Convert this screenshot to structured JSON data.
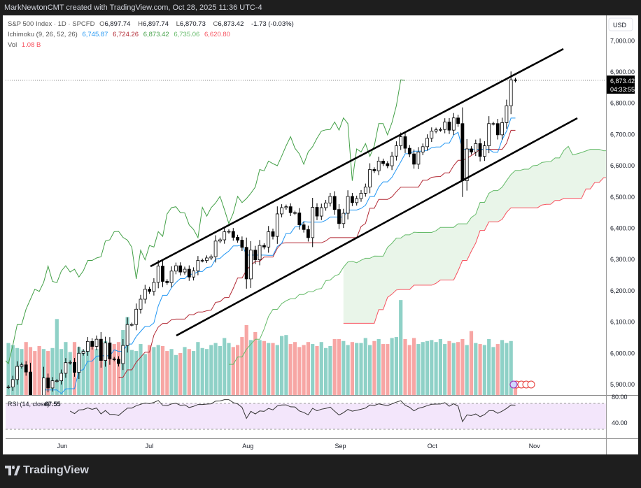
{
  "header": {
    "attribution": "MarkNewtonCMT created with TradingView.com, Oct 28, 2025 11:36 UTC-4"
  },
  "legend": {
    "symbol": "S&P 500 Index · 1D · SPCFD",
    "open_label": "O",
    "open": "6,897.74",
    "high_label": "H",
    "high": "6,897.74",
    "low_label": "L",
    "low": "6,870.73",
    "close_label": "C",
    "close": "6,873.42",
    "change": "-1.73 (-0.03%)",
    "ichimoku_label": "Ichimoku (9, 26, 52, 26)",
    "ichimoku_values": [
      "6,745.87",
      "6,724.26",
      "6,873.42",
      "6,735.06",
      "6,620.80"
    ],
    "vol_label": "Vol",
    "vol_value": "1.08 B"
  },
  "price_axis": {
    "currency": "USD",
    "ticks": [
      "7,000.00",
      "6,900.00",
      "6,800.00",
      "6,700.00",
      "6,600.00",
      "6,500.00",
      "6,400.00",
      "6,300.00",
      "6,200.00",
      "6,100.00",
      "6,000.00",
      "5,900.00"
    ],
    "last_price": "6,873.42",
    "countdown": "04:33:55"
  },
  "rsi": {
    "label": "RSI (14, close)",
    "value": "67.55",
    "ticks": [
      "80.00",
      "40.00"
    ]
  },
  "footer": {
    "brand": "TradingView"
  },
  "colors": {
    "tenkan": "#2196f3",
    "kijun": "#b22833",
    "lagging": "#43a047",
    "span_a": "#66bb6a",
    "span_b": "#f7525f",
    "vol_up": "#8fd1c7",
    "vol_down": "#f7a6a4",
    "cloud": "#e4f3e3",
    "rsi_band": "#f3e6fb",
    "rsi_line": "#333333"
  },
  "chart_data": {
    "type": "candlestick",
    "x_ticks": [
      {
        "label": "Jun",
        "date": "06-02"
      },
      {
        "label": "Jul",
        "date": "07-01"
      },
      {
        "label": "Aug",
        "date": "08-01"
      },
      {
        "label": "Sep",
        "date": "09-02"
      },
      {
        "label": "Oct",
        "date": "10-01"
      },
      {
        "label": "Nov",
        "date": "11-03"
      }
    ],
    "ylim": [
      5880,
      7060
    ],
    "dates": [
      "05-14",
      "05-15",
      "05-16",
      "05-19",
      "05-20",
      "05-21",
      "05-22",
      "05-23",
      "05-27",
      "05-28",
      "05-29",
      "05-30",
      "06-02",
      "06-03",
      "06-04",
      "06-05",
      "06-06",
      "06-09",
      "06-10",
      "06-11",
      "06-12",
      "06-13",
      "06-16",
      "06-17",
      "06-18",
      "06-20",
      "06-23",
      "06-24",
      "06-25",
      "06-26",
      "06-27",
      "06-30",
      "07-01",
      "07-02",
      "07-03",
      "07-07",
      "07-08",
      "07-09",
      "07-10",
      "07-11",
      "07-14",
      "07-15",
      "07-16",
      "07-17",
      "07-18",
      "07-21",
      "07-22",
      "07-23",
      "07-24",
      "07-25",
      "07-28",
      "07-29",
      "07-30",
      "07-31",
      "08-01",
      "08-04",
      "08-05",
      "08-06",
      "08-07",
      "08-08",
      "08-11",
      "08-12",
      "08-13",
      "08-14",
      "08-15",
      "08-18",
      "08-19",
      "08-20",
      "08-21",
      "08-22",
      "08-25",
      "08-26",
      "08-27",
      "08-28",
      "08-29",
      "09-02",
      "09-03",
      "09-04",
      "09-05",
      "09-08",
      "09-09",
      "09-10",
      "09-11",
      "09-12",
      "09-15",
      "09-16",
      "09-17",
      "09-18",
      "09-19",
      "09-22",
      "09-23",
      "09-24",
      "09-25",
      "09-26",
      "09-29",
      "09-30",
      "10-01",
      "10-02",
      "10-03",
      "10-06",
      "10-07",
      "10-08",
      "10-09",
      "10-10",
      "10-13",
      "10-14",
      "10-15",
      "10-16",
      "10-17",
      "10-20",
      "10-21",
      "10-22",
      "10-23",
      "10-24",
      "10-27",
      "10-28"
    ],
    "close": [
      5892,
      5916,
      5958,
      5963,
      5940,
      5845,
      5842,
      5802,
      5921,
      5889,
      5912,
      5912,
      5936,
      5970,
      5971,
      5939,
      6000,
      6006,
      6038,
      6022,
      6045,
      5977,
      6033,
      5982,
      5981,
      5967,
      6025,
      6092,
      6092,
      6141,
      6173,
      6205,
      6198,
      6227,
      6279,
      6230,
      6226,
      6263,
      6280,
      6260,
      6269,
      6244,
      6264,
      6297,
      6297,
      6305,
      6309,
      6359,
      6363,
      6389,
      6390,
      6371,
      6362,
      6339,
      6238,
      6330,
      6299,
      6345,
      6340,
      6389,
      6374,
      6446,
      6466,
      6469,
      6450,
      6449,
      6411,
      6396,
      6370,
      6467,
      6439,
      6466,
      6481,
      6502,
      6460,
      6415,
      6448,
      6502,
      6482,
      6495,
      6512,
      6532,
      6588,
      6584,
      6615,
      6607,
      6600,
      6631,
      6664,
      6693,
      6656,
      6638,
      6605,
      6644,
      6661,
      6688,
      6711,
      6715,
      6716,
      6740,
      6714,
      6753,
      6735,
      6552,
      6654,
      6644,
      6671,
      6630,
      6664,
      6735,
      6735,
      6699,
      6738,
      6792,
      6875,
      6873.42
    ],
    "volume_billions": [
      5.2,
      5.0,
      4.7,
      4.6,
      5.3,
      4.8,
      4.4,
      4.9,
      4.6,
      4.4,
      4.7,
      7.6,
      4.6,
      5.3,
      4.3,
      5.3,
      4.8,
      4.5,
      5.1,
      4.9,
      4.6,
      5.3,
      5.4,
      4.1,
      5.1,
      5.3,
      6.5,
      7.8,
      4.5,
      4.4,
      5.1,
      4.1,
      5.0,
      4.8,
      5.0,
      4.9,
      4.4,
      4.6,
      4.0,
      4.2,
      4.8,
      4.6,
      4.4,
      5.3,
      4.7,
      4.6,
      5.0,
      5.2,
      4.9,
      5.7,
      5.2,
      4.8,
      5.0,
      5.8,
      7.0,
      5.5,
      6.3,
      5.5,
      5.4,
      5.2,
      5.2,
      5.0,
      5.9,
      6.0,
      5.1,
      5.3,
      4.8,
      5.0,
      5.3,
      5.1,
      4.9,
      5.3,
      4.7,
      4.9,
      5.6,
      5.6,
      5.4,
      5.0,
      5.3,
      5.2,
      5.2,
      5.7,
      5.0,
      5.4,
      5.6,
      5.1,
      5.1,
      5.7,
      5.8,
      9.5,
      5.6,
      5.0,
      5.7,
      5.1,
      5.3,
      5.4,
      5.5,
      5.3,
      5.6,
      5.1,
      5.4,
      5.2,
      5.3,
      5.6,
      5.0,
      6.4,
      5.2,
      5.1,
      5.0,
      5.6,
      4.8,
      5.1,
      5.5,
      5.2,
      5.4,
      1.08
    ],
    "ichimoku_params": [
      9,
      26,
      52,
      26
    ],
    "rsi_period": 14,
    "rsi_bands": [
      70,
      30
    ],
    "trend_channel": "rising parallel channel drawn by hand",
    "grid": false
  }
}
